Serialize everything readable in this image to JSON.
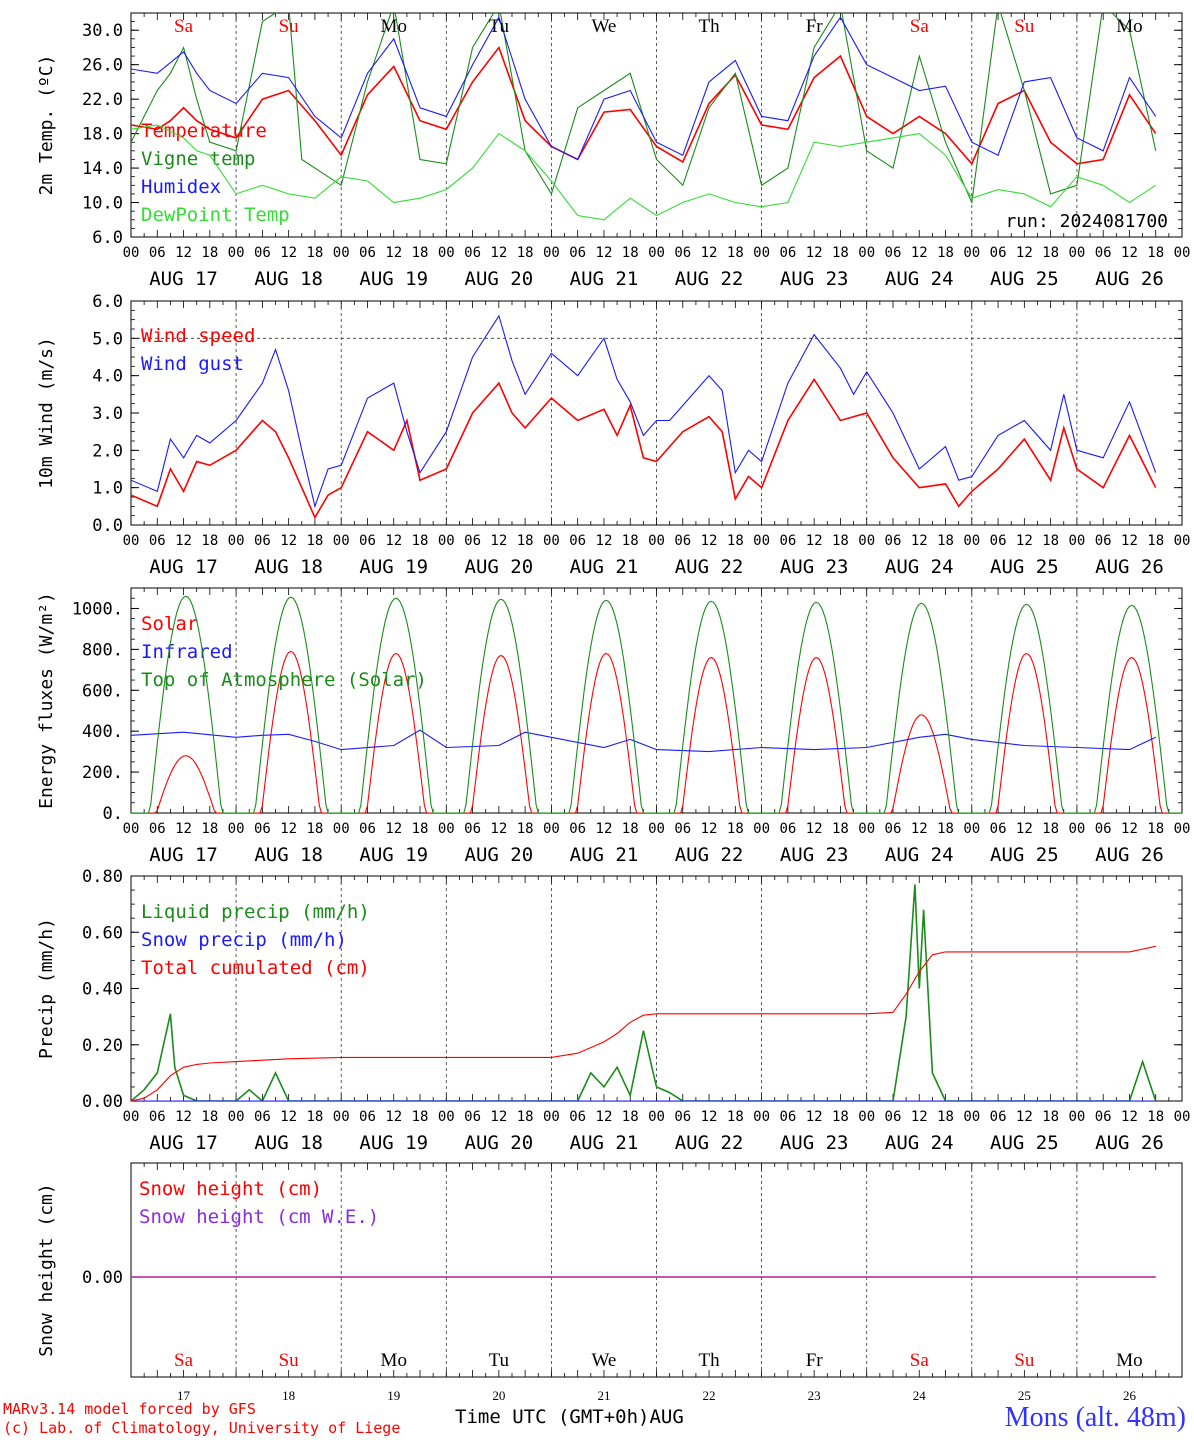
{
  "colors": {
    "red": "#ff0000",
    "green": "#1a8c1a",
    "blue": "#1a1aff",
    "light_green": "#33dd33",
    "purple": "#8a2be2",
    "grey": "#555555"
  },
  "days": {
    "weekday_labels": [
      "Sa",
      "Su",
      "Mo",
      "Tu",
      "We",
      "Th",
      "Fr",
      "Sa",
      "Su",
      "Mo"
    ],
    "weekend_flags": [
      true,
      true,
      false,
      false,
      false,
      false,
      false,
      true,
      true,
      false
    ],
    "date_labels": [
      "AUG 17",
      "AUG 18",
      "AUG 19",
      "AUG 20",
      "AUG 21",
      "AUG 22",
      "AUG 23",
      "AUG 24",
      "AUG 25",
      "AUG 26"
    ],
    "day_numbers": [
      "17",
      "18",
      "19",
      "20",
      "21",
      "22",
      "23",
      "24",
      "25",
      "26"
    ],
    "hour_ticks": [
      "00",
      "06",
      "12",
      "18"
    ],
    "final_tick": "00"
  },
  "footer": {
    "model_line": "MARv3.14 model forced by GFS",
    "credit_line": "(c) Lab. of Climatology, University of Liege",
    "axis_title": "Time UTC (GMT+0h)",
    "month": "AUG",
    "station": "Mons (alt. 48m)"
  },
  "chart_data": [
    {
      "type": "line",
      "ylabel": "2m Temp. (ºC)",
      "ylim": [
        6.0,
        32.0
      ],
      "yticks": [
        "6.0",
        "10.0",
        "14.0",
        "18.0",
        "22.0",
        "26.0",
        "30.0"
      ],
      "x_unit": "hours since Aug 17 00 UTC",
      "annotation": "run: 2024081700",
      "series": [
        {
          "name": "Temperature",
          "color": "red",
          "x": [
            0,
            6,
            9,
            12,
            15,
            18,
            24,
            30,
            36,
            42,
            48,
            54,
            60,
            66,
            72,
            78,
            84,
            90,
            96,
            102,
            108,
            114,
            120,
            126,
            132,
            138,
            144,
            150,
            156,
            162,
            168,
            174,
            180,
            186,
            192,
            198,
            204,
            210,
            216,
            222,
            228,
            234
          ],
          "y": [
            19,
            18.5,
            19.5,
            21,
            19.5,
            18.5,
            17.5,
            22,
            23,
            19.5,
            15.5,
            22.5,
            25.8,
            19.5,
            18.5,
            24,
            28,
            19.5,
            16.5,
            15,
            20.5,
            20.8,
            16.5,
            14.7,
            21.5,
            24.8,
            19,
            18.5,
            24.5,
            27,
            20,
            18,
            20,
            18,
            14.5,
            21.5,
            23,
            17,
            14.5,
            15,
            22.5,
            18
          ]
        },
        {
          "name": "Vigne temp",
          "color": "green",
          "x": [
            0,
            6,
            9,
            12,
            15,
            18,
            24,
            30,
            36,
            39,
            42,
            48,
            54,
            60,
            66,
            72,
            78,
            84,
            90,
            96,
            102,
            108,
            114,
            120,
            126,
            132,
            138,
            144,
            150,
            156,
            162,
            168,
            174,
            180,
            186,
            192,
            198,
            204,
            210,
            216,
            222,
            228,
            234
          ],
          "y": [
            17,
            23,
            25,
            28,
            22,
            17,
            16,
            31,
            33,
            15,
            14,
            12,
            24,
            33,
            15,
            14.5,
            28,
            33,
            16,
            11,
            21,
            23,
            25,
            15,
            12,
            21,
            25,
            12,
            14,
            28,
            33,
            16,
            14,
            27,
            17,
            10,
            33,
            23,
            11,
            12,
            33,
            30,
            16
          ]
        },
        {
          "name": "Humidex",
          "color": "blue",
          "x": [
            0,
            6,
            12,
            15,
            18,
            24,
            30,
            36,
            42,
            48,
            54,
            60,
            66,
            72,
            78,
            84,
            90,
            96,
            102,
            108,
            114,
            120,
            126,
            132,
            138,
            144,
            150,
            156,
            162,
            168,
            174,
            180,
            186,
            192,
            198,
            204,
            210,
            216,
            222,
            228,
            234
          ],
          "y": [
            25.5,
            25,
            27.5,
            25,
            23,
            21.5,
            25,
            24.5,
            20,
            17.5,
            25,
            29,
            21,
            20,
            26,
            31.5,
            22,
            16.5,
            15,
            22,
            23,
            17,
            15.5,
            24,
            26.5,
            20,
            19.5,
            27,
            31.5,
            26,
            24.5,
            23,
            23.5,
            17,
            15.5,
            24,
            24.5,
            17.5,
            16,
            24.5,
            20
          ]
        },
        {
          "name": "DewPoint Temp",
          "color": "light_green",
          "x": [
            0,
            6,
            12,
            15,
            18,
            24,
            30,
            36,
            42,
            48,
            54,
            60,
            66,
            72,
            78,
            84,
            90,
            96,
            102,
            108,
            114,
            120,
            126,
            132,
            138,
            144,
            150,
            156,
            162,
            168,
            174,
            180,
            186,
            192,
            198,
            204,
            210,
            216,
            222,
            228,
            234
          ],
          "y": [
            18.5,
            19,
            17.5,
            16,
            15.5,
            11,
            12,
            11,
            10.5,
            13,
            12.5,
            10,
            10.5,
            11.5,
            14,
            18,
            16,
            12.5,
            8.5,
            8,
            10.5,
            8.5,
            10,
            11,
            10,
            9.5,
            10,
            17,
            16.5,
            17,
            17.5,
            18,
            15.5,
            10.5,
            11.5,
            11,
            9.5,
            13,
            12,
            10,
            12
          ]
        }
      ]
    },
    {
      "type": "line",
      "ylabel": "10m Wind (m/s)",
      "ylim": [
        0.0,
        6.0
      ],
      "yticks": [
        "0.0",
        "1.0",
        "2.0",
        "3.0",
        "4.0",
        "5.0",
        "6.0"
      ],
      "x_unit": "hours since Aug 17 00 UTC",
      "series": [
        {
          "name": "Wind speed",
          "color": "red",
          "x": [
            0,
            6,
            9,
            12,
            15,
            18,
            24,
            30,
            33,
            36,
            39,
            42,
            45,
            48,
            54,
            60,
            63,
            66,
            72,
            78,
            84,
            87,
            90,
            96,
            102,
            108,
            111,
            114,
            117,
            120,
            123,
            126,
            132,
            135,
            138,
            141,
            144,
            150,
            156,
            162,
            168,
            174,
            180,
            186,
            189,
            192,
            198,
            204,
            210,
            213,
            216,
            222,
            228,
            234
          ],
          "y": [
            0.8,
            0.5,
            1.5,
            0.9,
            1.7,
            1.6,
            2.0,
            2.8,
            2.5,
            1.8,
            1.0,
            0.2,
            0.8,
            1.0,
            2.5,
            2.0,
            2.8,
            1.2,
            1.5,
            3.0,
            3.8,
            3.0,
            2.6,
            3.4,
            2.8,
            3.1,
            2.4,
            3.2,
            1.8,
            1.7,
            2.1,
            2.5,
            2.9,
            2.5,
            0.7,
            1.3,
            1.0,
            2.8,
            3.9,
            2.8,
            3.0,
            1.8,
            1.0,
            1.1,
            0.5,
            0.9,
            1.5,
            2.3,
            1.2,
            2.6,
            1.5,
            1.0,
            2.4,
            1.0
          ]
        },
        {
          "name": "Wind gust",
          "color": "blue",
          "x": [
            0,
            6,
            9,
            12,
            15,
            18,
            24,
            30,
            33,
            36,
            39,
            42,
            45,
            48,
            54,
            60,
            63,
            66,
            72,
            78,
            84,
            87,
            90,
            96,
            102,
            108,
            111,
            114,
            117,
            120,
            123,
            126,
            132,
            135,
            138,
            141,
            144,
            150,
            156,
            162,
            165,
            168,
            174,
            180,
            186,
            189,
            192,
            198,
            204,
            210,
            213,
            216,
            222,
            228,
            234
          ],
          "y": [
            1.2,
            0.9,
            2.3,
            1.8,
            2.4,
            2.2,
            2.8,
            3.8,
            4.7,
            3.6,
            2.0,
            0.5,
            1.5,
            1.6,
            3.4,
            3.8,
            2.5,
            1.4,
            2.5,
            4.5,
            5.6,
            4.4,
            3.5,
            4.6,
            4.0,
            5.0,
            3.9,
            3.3,
            2.4,
            2.8,
            2.8,
            3.2,
            4.0,
            3.6,
            1.4,
            2.0,
            1.7,
            3.8,
            5.1,
            4.2,
            3.5,
            4.1,
            3.0,
            1.5,
            2.1,
            1.2,
            1.3,
            2.4,
            2.8,
            2.0,
            3.5,
            2.0,
            1.8,
            3.3,
            1.4
          ]
        }
      ]
    },
    {
      "type": "line",
      "ylabel": "Energy fluxes (W/m²)",
      "ylim": [
        0,
        1100
      ],
      "yticks": [
        "0.",
        "200.",
        "400.",
        "600.",
        "800.",
        "1000."
      ],
      "x_unit": "hours since Aug 17 00 UTC",
      "series": [
        {
          "name": "Solar",
          "color": "red",
          "day_peaks": [
            280,
            790,
            780,
            770,
            780,
            760,
            760,
            480,
            780,
            760
          ]
        },
        {
          "name": "Infrared",
          "color": "blue",
          "x": [
            0,
            12,
            24,
            30,
            36,
            42,
            48,
            60,
            66,
            72,
            84,
            90,
            96,
            108,
            114,
            120,
            132,
            144,
            156,
            168,
            180,
            186,
            192,
            204,
            216,
            228,
            234
          ],
          "y": [
            380,
            395,
            370,
            380,
            385,
            350,
            310,
            330,
            405,
            320,
            330,
            395,
            370,
            320,
            360,
            310,
            300,
            320,
            310,
            320,
            370,
            385,
            360,
            330,
            320,
            310,
            370
          ]
        },
        {
          "name": "Top of Atmosphere (Solar)",
          "color": "green",
          "day_peaks": [
            1060,
            1055,
            1050,
            1045,
            1040,
            1035,
            1030,
            1025,
            1020,
            1015
          ]
        }
      ]
    },
    {
      "type": "line",
      "ylabel": "Precip (mm/h)",
      "ylim": [
        0.0,
        0.8
      ],
      "yticks": [
        "0.00",
        "0.20",
        "0.40",
        "0.60",
        "0.80"
      ],
      "x_unit": "hours since Aug 17 00 UTC",
      "series": [
        {
          "name": "Liquid precip (mm/h)",
          "color": "green",
          "x": [
            0,
            3,
            6,
            9,
            10,
            12,
            15,
            18,
            24,
            27,
            30,
            33,
            36,
            42,
            48,
            96,
            102,
            105,
            108,
            111,
            114,
            117,
            120,
            123,
            126,
            132,
            168,
            174,
            177,
            179,
            180,
            181,
            183,
            186,
            189,
            192,
            228,
            231,
            234
          ],
          "y": [
            0.0,
            0.04,
            0.1,
            0.31,
            0.12,
            0.02,
            0.0,
            0.0,
            0.0,
            0.04,
            0.0,
            0.1,
            0.0,
            0.0,
            0.0,
            0.0,
            0.0,
            0.1,
            0.05,
            0.12,
            0.02,
            0.25,
            0.05,
            0.03,
            0.0,
            0.0,
            0.0,
            0.0,
            0.3,
            0.77,
            0.4,
            0.68,
            0.1,
            0.0,
            0.0,
            0.0,
            0.0,
            0.14,
            0.0
          ]
        },
        {
          "name": "Snow precip (mm/h)",
          "color": "blue",
          "x": [
            0,
            234
          ],
          "y": [
            0.0,
            0.0
          ]
        },
        {
          "name": "Total cumulated (cm)",
          "color": "red",
          "x": [
            0,
            3,
            6,
            9,
            12,
            15,
            18,
            24,
            30,
            36,
            48,
            72,
            96,
            102,
            108,
            111,
            114,
            117,
            120,
            126,
            144,
            168,
            174,
            177,
            180,
            183,
            186,
            192,
            216,
            228,
            234
          ],
          "y": [
            0.0,
            0.01,
            0.04,
            0.09,
            0.12,
            0.13,
            0.135,
            0.14,
            0.145,
            0.15,
            0.155,
            0.155,
            0.155,
            0.17,
            0.21,
            0.24,
            0.28,
            0.305,
            0.31,
            0.31,
            0.31,
            0.31,
            0.315,
            0.38,
            0.46,
            0.52,
            0.53,
            0.53,
            0.53,
            0.53,
            0.55
          ]
        }
      ]
    },
    {
      "type": "line",
      "ylabel": "Snow height (cm)",
      "yticks": [
        "0.00"
      ],
      "x_unit": "hours since Aug 17 00 UTC",
      "series": [
        {
          "name": "Snow height (cm)",
          "color": "red",
          "x": [
            0,
            234
          ],
          "y": [
            0.0,
            0.0
          ]
        },
        {
          "name": "Snow height (cm W.E.)",
          "color": "blue",
          "x": [
            0,
            234
          ],
          "y": [
            0.0,
            0.0
          ]
        }
      ]
    }
  ]
}
